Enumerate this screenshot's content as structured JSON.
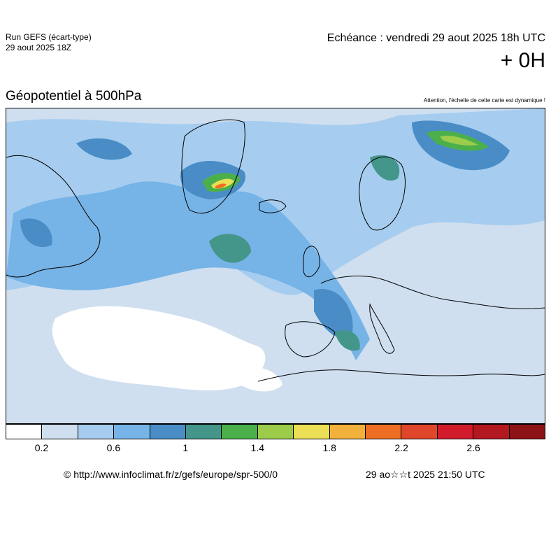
{
  "header": {
    "run_label": "Run GEFS (écart-type)",
    "run_date": "29 aout 2025 18Z",
    "echeance": "Echéance : vendredi 29 aout 2025 18h UTC",
    "offset": "+ 0H"
  },
  "map": {
    "parameter_title": "Géopotentiel à 500hPa",
    "dynamic_scale_note": "Attention, l'échelle de cette carte est dynamique !",
    "region": "Europe / North Atlantic"
  },
  "legend": {
    "colors": [
      "#ffffff",
      "#cfdff0",
      "#a6cdef",
      "#76b3e6",
      "#4a8dc6",
      "#45968a",
      "#4cb04a",
      "#9ccc4a",
      "#ebdf56",
      "#f2b13b",
      "#ee6f24",
      "#e0472a",
      "#d21b2a",
      "#b3171f",
      "#8c1216"
    ],
    "tick_labels": [
      "0.2",
      "0.6",
      "1",
      "1.4",
      "1.8",
      "2.2",
      "2.6"
    ]
  },
  "footer": {
    "url": "© http://www.infoclimat.fr/z/gefs/europe/spr-500/0",
    "generated": "29 ao☆☆t 2025 21:50 UTC"
  }
}
